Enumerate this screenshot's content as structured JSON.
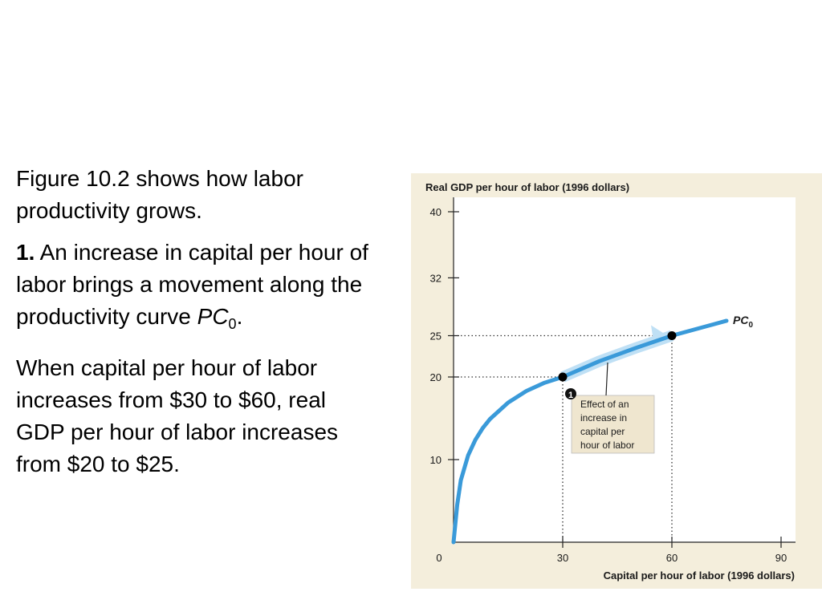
{
  "text": {
    "p1": "Figure 10.2 shows how labor productivity grows.",
    "p2_num": "1.",
    "p2_text": " An increase in capital per hour of labor brings a movement along the productivity curve ",
    "p2_curve": "PC",
    "p2_sub": "0",
    "p2_end": ".",
    "p3": "When capital per hour of labor increases from $30 to $60, real GDP per hour of labor increases from $20 to $25."
  },
  "colors": {
    "panel": "#f4eedc",
    "plot": "#ffffff",
    "curve": "#3a9ad9",
    "arrow": "#bfe0f5",
    "callout": "#efe6cf"
  },
  "chart_data": {
    "type": "line",
    "title": "",
    "ylabel": "Real GDP per hour of labor (1996 dollars)",
    "xlabel": "Capital per hour of labor (1996 dollars)",
    "xlim": [
      0,
      90
    ],
    "ylim": [
      0,
      40
    ],
    "xticks": [
      0,
      30,
      60,
      90
    ],
    "yticks": [
      10,
      20,
      25,
      32,
      40
    ],
    "grid": false,
    "series": [
      {
        "name": "PC",
        "name_sub": "0",
        "x": [
          0,
          1,
          2,
          4,
          6,
          8,
          10,
          15,
          20,
          25,
          30,
          40,
          50,
          60,
          70,
          75
        ],
        "y": [
          0,
          4.5,
          7.5,
          10.5,
          12.4,
          13.8,
          14.9,
          16.9,
          18.3,
          19.3,
          20,
          21.9,
          23.5,
          25,
          26.2,
          26.8
        ]
      }
    ],
    "points": [
      {
        "x": 30,
        "y": 20
      },
      {
        "x": 60,
        "y": 25
      }
    ],
    "annotation": {
      "number": "1",
      "lines": [
        "Effect of an",
        "increase in",
        "capital per",
        "hour of labor"
      ]
    }
  }
}
